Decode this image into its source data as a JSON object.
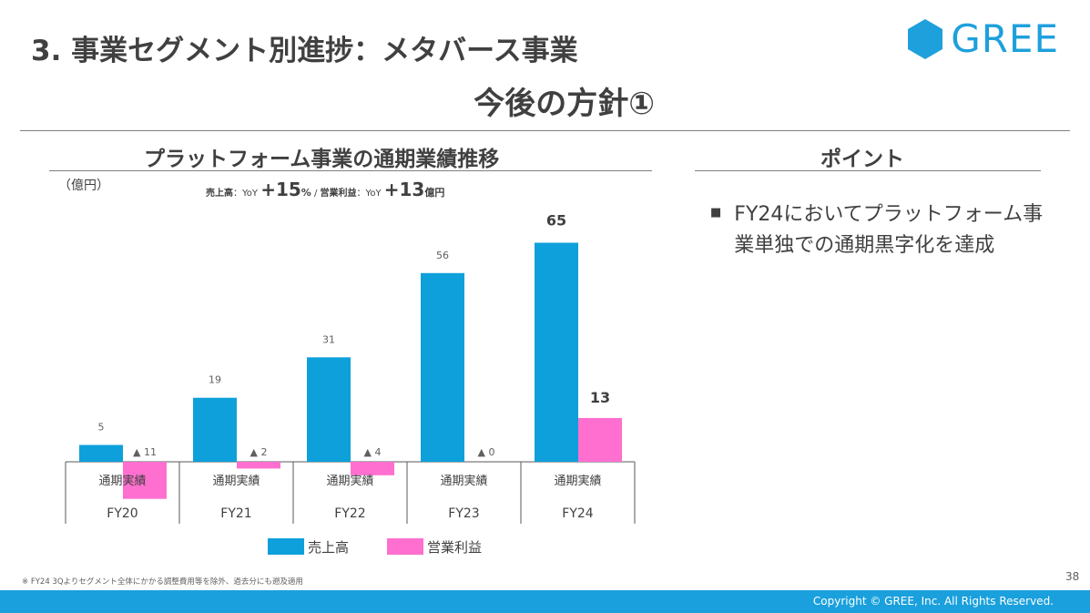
{
  "header": {
    "title": "3. 事業セグメント別進捗：メタバース事業",
    "subtitle": "今後の方針①",
    "logo_text": "GREE"
  },
  "left_section": {
    "title": "プラットフォーム事業の通期業績推移",
    "unit": "（億円）",
    "yoy": {
      "sales_label": "売上高",
      "yoy_label": "：YoY ",
      "sales_value": "+15",
      "sales_unit": "%",
      "separator": " / ",
      "op_label": "営業利益",
      "op_value": "+13",
      "op_unit": "億円"
    }
  },
  "right_section": {
    "title": "ポイント",
    "bullets": [
      {
        "marker": "■",
        "text": "FY24においてプラットフォーム事業単独での通期黒字化を達成"
      }
    ]
  },
  "chart_data": {
    "type": "bar",
    "title": "プラットフォーム事業の通期業績推移",
    "ylabel": "（億円）",
    "categories": [
      "FY20",
      "FY21",
      "FY22",
      "FY23",
      "FY24"
    ],
    "category_sublabels": [
      "通期実績",
      "通期実績",
      "通期実績",
      "通期実績",
      "通期実績"
    ],
    "series": [
      {
        "name": "売上高",
        "color": "#0ea0da",
        "values": [
          5,
          19,
          31,
          56,
          65
        ],
        "labels": [
          "5",
          "19",
          "31",
          "56",
          "65"
        ]
      },
      {
        "name": "営業利益",
        "color": "#ff6fcf",
        "values": [
          -11,
          -2,
          -4,
          0,
          13
        ],
        "labels": [
          "▲ 11",
          "▲ 2",
          "▲ 4",
          "▲ 0",
          "13"
        ]
      }
    ],
    "ylim": [
      -11,
      65
    ]
  },
  "footnote": "※ FY24 3Qよりセグメント全体にかかる調整費用等を除外、過去分にも遡及適用",
  "page_number": "38",
  "copyright": "Copyright © GREE, Inc. All Rights Reserved.",
  "colors": {
    "accent": "#1aa0dc",
    "sales": "#0ea0da",
    "op": "#ff6fcf",
    "text": "#404040"
  }
}
